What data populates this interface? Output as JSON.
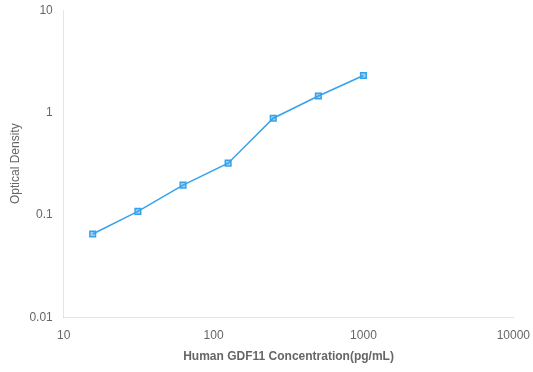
{
  "chart_data": {
    "type": "line",
    "x": [
      15.6,
      31.25,
      62.5,
      125,
      250,
      500,
      1000
    ],
    "values": [
      0.065,
      0.108,
      0.195,
      0.32,
      0.88,
      1.45,
      2.3
    ],
    "xlim": [
      10,
      10000
    ],
    "ylim": [
      0.01,
      10
    ],
    "xticks": [
      10,
      100,
      1000,
      10000
    ],
    "yticks": [
      0.01,
      0.1,
      1,
      10
    ],
    "xlabel": "Human GDF11 Concentration(pg/mL)",
    "ylabel": "Optical Density",
    "log": true,
    "grid": false,
    "marker": "square"
  }
}
